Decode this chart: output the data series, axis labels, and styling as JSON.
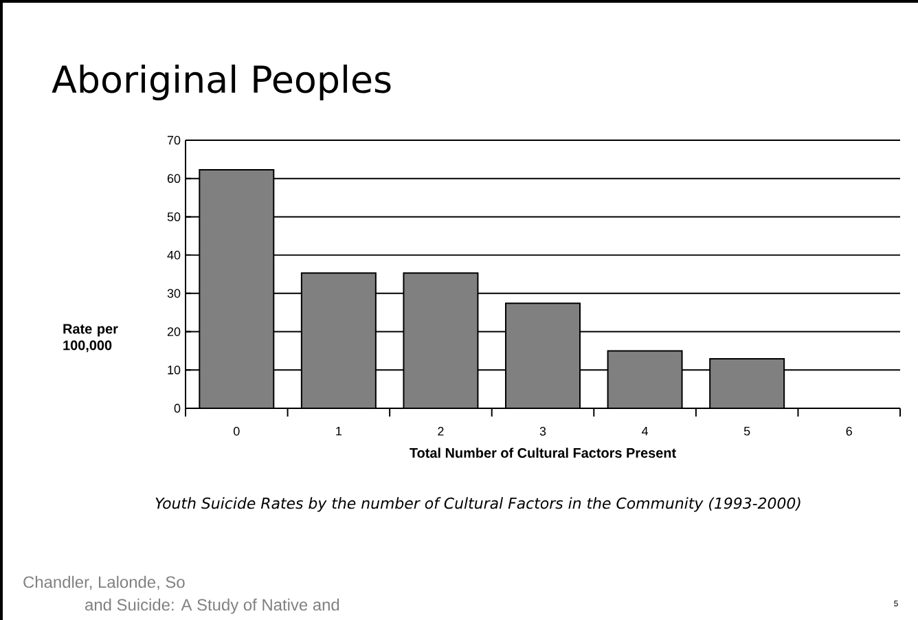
{
  "chart_data": {
    "type": "bar",
    "title": "Aboriginal Peoples",
    "xlabel": "Total Number of Cultural Factors Present",
    "ylabel": "Rate per 100,000",
    "categories": [
      "0",
      "1",
      "2",
      "3",
      "4",
      "5",
      "6"
    ],
    "values": [
      62.3,
      35.3,
      35.3,
      27.4,
      15,
      12.9,
      0
    ],
    "color": "#808080",
    "ylim": [
      0,
      70
    ],
    "yticks": [
      0,
      10,
      20,
      30,
      40,
      50,
      60,
      70
    ],
    "grid": "y",
    "annotations": [
      "Youth Suicide Rates by the number of Cultural Factors in the Community (1993-2000)",
      "Chandler, Lalonde, So",
      "and Suicide: A Study of Native and",
      "5"
    ]
  }
}
